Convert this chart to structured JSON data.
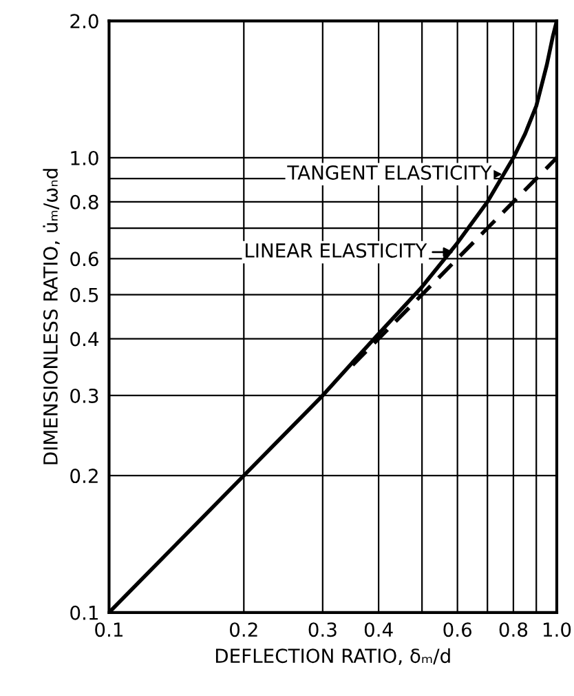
{
  "chart_data": {
    "type": "line",
    "xlabel": "DEFLECTION RATIO, δₘ/d",
    "ylabel": "DIMENSIONLESS RATIO, u̇ₘ/ωₙd",
    "log": "xy",
    "grid": true,
    "legend": false,
    "xlim": [
      0.1,
      1.0
    ],
    "ylim": [
      0.1,
      2.0
    ],
    "xticks": [
      {
        "value": 0.1,
        "label": "0.1"
      },
      {
        "value": 0.2,
        "label": "0.2"
      },
      {
        "value": 0.3,
        "label": "0.3"
      },
      {
        "value": 0.4,
        "label": "0.4"
      },
      {
        "value": 0.5,
        "label": null
      },
      {
        "value": 0.6,
        "label": "0.6"
      },
      {
        "value": 0.7,
        "label": null
      },
      {
        "value": 0.8,
        "label": "0.8"
      },
      {
        "value": 0.9,
        "label": null
      },
      {
        "value": 1.0,
        "label": "1.0"
      }
    ],
    "yticks": [
      {
        "value": 0.1,
        "label": "0.1"
      },
      {
        "value": 0.2,
        "label": "0.2"
      },
      {
        "value": 0.3,
        "label": "0.3"
      },
      {
        "value": 0.4,
        "label": "0.4"
      },
      {
        "value": 0.5,
        "label": "0.5"
      },
      {
        "value": 0.6,
        "label": "0.6"
      },
      {
        "value": 0.7,
        "label": null
      },
      {
        "value": 0.8,
        "label": "0.8"
      },
      {
        "value": 0.9,
        "label": null
      },
      {
        "value": 1.0,
        "label": "1.0"
      },
      {
        "value": 2.0,
        "label": "2.0"
      }
    ],
    "series": [
      {
        "color": "#000000",
        "line_style": "solid",
        "x": [
          0.1,
          0.2,
          0.3,
          0.35,
          0.4,
          0.5,
          0.6,
          0.7,
          0.8,
          0.85,
          0.9,
          0.95,
          0.98,
          1.0
        ],
        "values": [
          0.1,
          0.2,
          0.3,
          0.355,
          0.41,
          0.52,
          0.65,
          0.8,
          1.0,
          1.13,
          1.3,
          1.6,
          1.85,
          2.0
        ]
      },
      {
        "color": "#000000",
        "line_style": "dashed",
        "x": [
          0.35,
          0.5,
          0.7,
          1.0
        ],
        "values": [
          0.35,
          0.5,
          0.7,
          1.0
        ]
      }
    ],
    "annotations": [
      {
        "text": "TANGENT ELASTICITY",
        "x": 0.77,
        "y": 0.92
      },
      {
        "text": "LINEAR ELASTICITY",
        "x": 0.6,
        "y": 0.62
      }
    ]
  }
}
